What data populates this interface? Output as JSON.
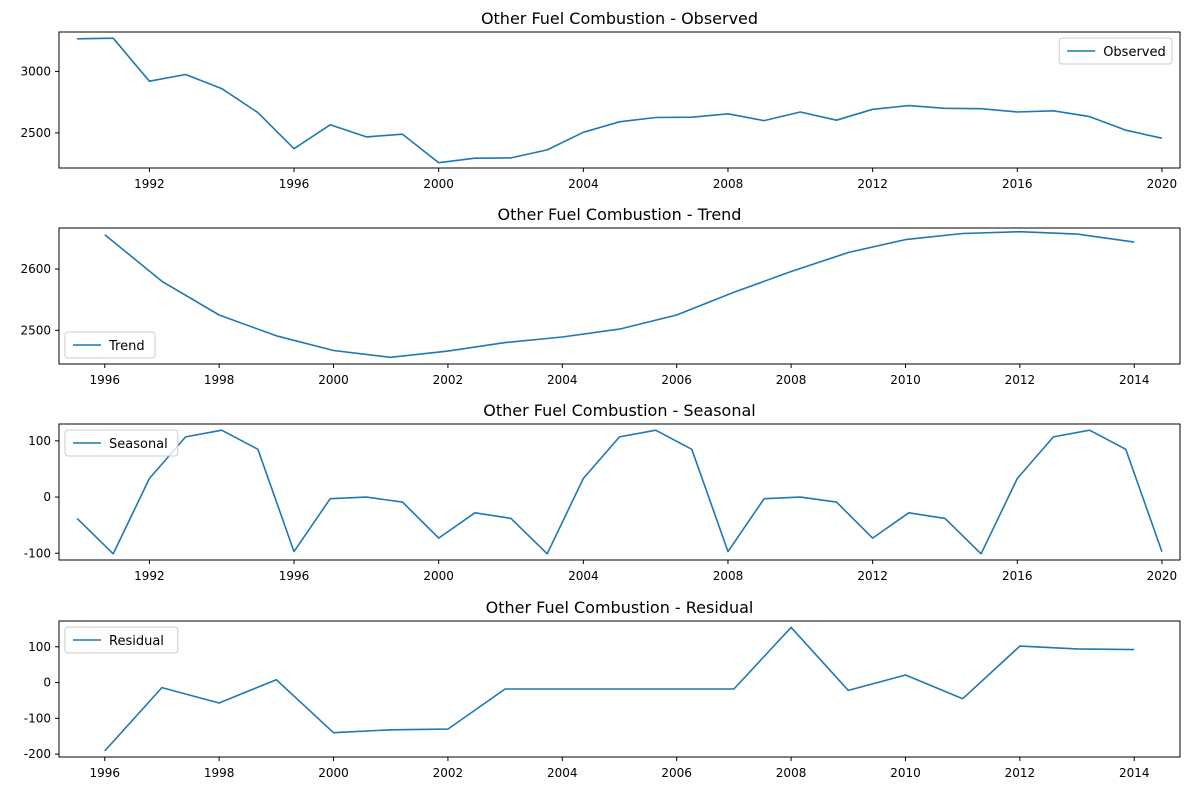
{
  "chart_data": [
    {
      "type": "line",
      "title": "Other Fuel Combustion  - Observed",
      "xlabel": "",
      "ylabel": "",
      "x": [
        1990,
        1991,
        1992,
        1993,
        1994,
        1995,
        1996,
        1997,
        1998,
        1999,
        2000,
        2001,
        2002,
        2003,
        2004,
        2005,
        2006,
        2007,
        2008,
        2009,
        2010,
        2011,
        2012,
        2013,
        2014,
        2015,
        2016,
        2017,
        2018,
        2019,
        2020
      ],
      "series": [
        {
          "name": "Observed",
          "color": "#1f77b4",
          "values": [
            3265,
            3270,
            2920,
            2975,
            2860,
            2665,
            2372,
            2566,
            2468,
            2490,
            2258,
            2295,
            2297,
            2362,
            2505,
            2590,
            2625,
            2628,
            2655,
            2600,
            2670,
            2603,
            2692,
            2722,
            2700,
            2697,
            2670,
            2680,
            2633,
            2522,
            2457
          ]
        }
      ],
      "xlim": [
        1989.5,
        2020.5
      ],
      "ylim": [
        2215,
        3320
      ],
      "xticks": [
        1992,
        1996,
        2000,
        2004,
        2008,
        2012,
        2016,
        2020
      ],
      "yticks": [
        2500,
        3000
      ],
      "legend": "upper-right"
    },
    {
      "type": "line",
      "title": "Other Fuel Combustion  - Trend",
      "xlabel": "",
      "ylabel": "",
      "x": [
        1996,
        1997,
        1998,
        1999,
        2000,
        2001,
        2002,
        2003,
        2004,
        2005,
        2006,
        2007,
        2008,
        2009,
        2010,
        2011,
        2012,
        2013,
        2014
      ],
      "series": [
        {
          "name": "Trend",
          "color": "#1f77b4",
          "values": [
            2656,
            2580,
            2525,
            2491,
            2467,
            2456,
            2466,
            2480,
            2489,
            2502,
            2525,
            2562,
            2596,
            2627,
            2648,
            2658,
            2661,
            2657,
            2644
          ]
        }
      ],
      "xlim": [
        1995.2,
        2014.8
      ],
      "ylim": [
        2445,
        2667
      ],
      "xticks": [
        1996,
        1998,
        2000,
        2002,
        2004,
        2006,
        2008,
        2010,
        2012,
        2014
      ],
      "yticks": [
        2500,
        2600
      ],
      "legend": "lower-left"
    },
    {
      "type": "line",
      "title": "Other Fuel Combustion  - Seasonal",
      "xlabel": "",
      "ylabel": "",
      "x": [
        1990,
        1991,
        1992,
        1993,
        1994,
        1995,
        1996,
        1997,
        1998,
        1999,
        2000,
        2001,
        2002,
        2003,
        2004,
        2005,
        2006,
        2007,
        2008,
        2009,
        2010,
        2011,
        2012,
        2013,
        2014,
        2015,
        2016,
        2017,
        2018,
        2019,
        2020
      ],
      "series": [
        {
          "name": "Seasonal",
          "color": "#1f77b4",
          "values": [
            -38,
            -101,
            33,
            107,
            119,
            85,
            -97,
            -3,
            0,
            -9,
            -73,
            -28,
            -38,
            -101,
            33,
            107,
            119,
            85,
            -97,
            -3,
            0,
            -9,
            -73,
            -28,
            -38,
            -101,
            33,
            107,
            119,
            85,
            -97
          ]
        }
      ],
      "xlim": [
        1989.5,
        2020.5
      ],
      "ylim": [
        -112,
        130
      ],
      "xticks": [
        1992,
        1996,
        2000,
        2004,
        2008,
        2012,
        2016,
        2020
      ],
      "yticks": [
        -100,
        0,
        100
      ],
      "legend": "upper-left"
    },
    {
      "type": "line",
      "title": "Other Fuel Combustion  - Residual",
      "xlabel": "",
      "ylabel": "",
      "x": [
        1996,
        1997,
        1998,
        1999,
        2000,
        2001,
        2002,
        2003,
        2004,
        2005,
        2006,
        2007,
        2008,
        2009,
        2010,
        2011,
        2012,
        2013,
        2014
      ],
      "series": [
        {
          "name": "Residual",
          "color": "#1f77b4",
          "values": [
            -191,
            -14,
            -57,
            8,
            -140,
            -132,
            -130,
            -18,
            -18,
            -18,
            -18,
            -18,
            154,
            -22,
            21,
            -45,
            102,
            94,
            92
          ]
        }
      ],
      "xlim": [
        1995.2,
        2014.8
      ],
      "ylim": [
        -208,
        172
      ],
      "xticks": [
        1996,
        1998,
        2000,
        2002,
        2004,
        2006,
        2008,
        2010,
        2012,
        2014
      ],
      "yticks": [
        -200,
        -100,
        0,
        100
      ],
      "legend": "upper-left"
    }
  ]
}
